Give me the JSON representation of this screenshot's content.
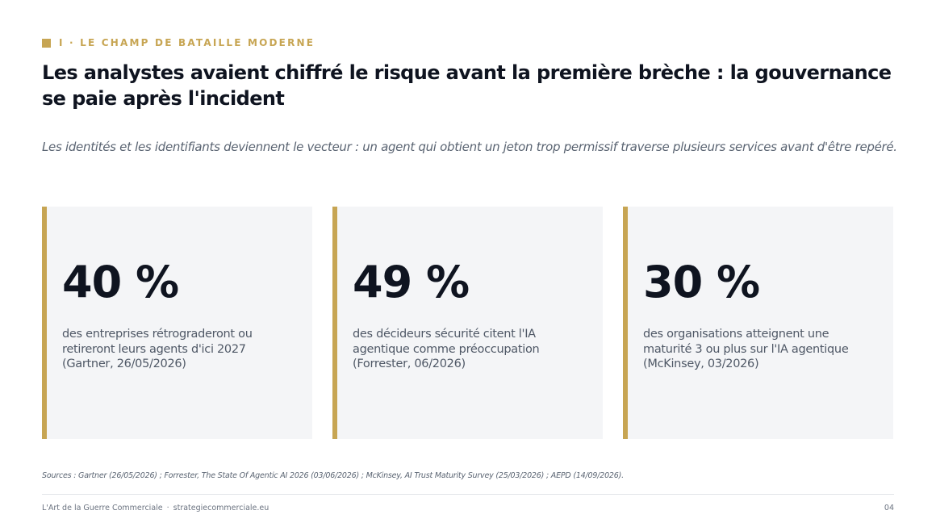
{
  "section": {
    "label": "I · LE CHAMP DE BATAILLE MODERNE"
  },
  "title": "Les analystes avaient chiffré le risque avant la première brèche : la gouvernance se paie après l'incident",
  "subtitle": "Les identités et les identifiants deviennent le vecteur : un agent qui obtient un jeton trop permissif traverse plusieurs services avant d'être repéré.",
  "cards": [
    {
      "value": "40 %",
      "description": "des entreprises rétrograderont ou retireront leurs agents d'ici 2027 (Gartner, 26/05/2026)"
    },
    {
      "value": "49 %",
      "description": "des décideurs sécurité citent l'IA agentique comme préoccupation (Forrester, 06/2026)"
    },
    {
      "value": "30 %",
      "description": "des organisations atteignent une maturité 3 ou plus sur l'IA agentique (McKinsey, 03/2026)"
    }
  ],
  "sources": "Sources : Gartner (26/05/2026) ; Forrester, The State Of Agentic AI 2026 (03/06/2026) ; McKinsey, AI Trust Maturity Survey (25/03/2026) ; AEPD (14/09/2026).",
  "footer": {
    "brand": "L'Art de la Guerre Commerciale",
    "separator": "·",
    "website": "strategiecommerciale.eu",
    "page_number": "04"
  },
  "colors": {
    "accent": "#c7a553",
    "heading": "#0f1420",
    "card_background": "#f4f5f7"
  }
}
